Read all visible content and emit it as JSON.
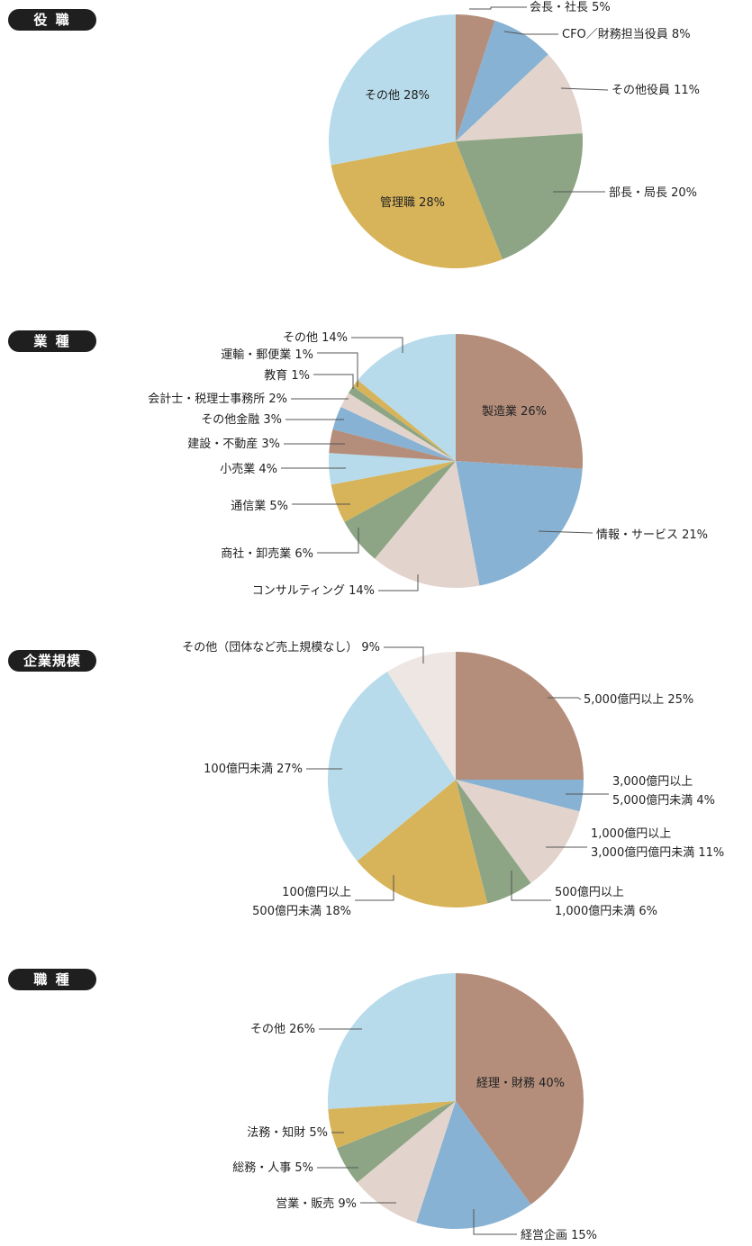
{
  "chart_data": [
    {
      "type": "pie",
      "section_title": "役 職",
      "slices": [
        {
          "label": "会長・社長 5%",
          "value": 5,
          "color": "#b48e7b"
        },
        {
          "label": "CFO／財務担当役員 8%",
          "value": 8,
          "color": "#87b2d3"
        },
        {
          "label": "その他役員 11%",
          "value": 11,
          "color": "#e2d4cc"
        },
        {
          "label": "部長・局長 20%",
          "value": 20,
          "color": "#8da584"
        },
        {
          "label": "管理職 28%",
          "value": 28,
          "color": "#d7b45a"
        },
        {
          "label": "その他 28%",
          "value": 28,
          "color": "#b8dbeb"
        }
      ]
    },
    {
      "type": "pie",
      "section_title": "業 種",
      "slices": [
        {
          "label": "製造業 26%",
          "value": 26,
          "color": "#b48e7b"
        },
        {
          "label": "情報・サービス 21%",
          "value": 21,
          "color": "#87b2d3"
        },
        {
          "label": "コンサルティング 14%",
          "value": 14,
          "color": "#e2d4cc"
        },
        {
          "label": "商社・卸売業 6%",
          "value": 6,
          "color": "#8da584"
        },
        {
          "label": "通信業 5%",
          "value": 5,
          "color": "#d7b45a"
        },
        {
          "label": "小売業 4%",
          "value": 4,
          "color": "#b8dbeb"
        },
        {
          "label": "建設・不動産 3%",
          "value": 3,
          "color": "#b48e7b"
        },
        {
          "label": "その他金融 3%",
          "value": 3,
          "color": "#87b2d3"
        },
        {
          "label": "会計士・税理士事務所 2%",
          "value": 2,
          "color": "#e2d4cc"
        },
        {
          "label": "教育 1%",
          "value": 1,
          "color": "#8da584"
        },
        {
          "label": "運輸・郵便業 1%",
          "value": 1,
          "color": "#d7b45a"
        },
        {
          "label": "その他 14%",
          "value": 14,
          "color": "#b8dbeb"
        }
      ]
    },
    {
      "type": "pie",
      "section_title": "企業規模",
      "slices": [
        {
          "label": "5,000億円以上 25%",
          "value": 25,
          "color": "#b48e7b"
        },
        {
          "label": "3,000億円以上\n5,000億円未満 4%",
          "value": 4,
          "color": "#87b2d3"
        },
        {
          "label": "1,000億円以上\n3,000億円億円未満 11%",
          "value": 11,
          "color": "#e2d4cc"
        },
        {
          "label": "500億円以上\n1,000億円未満 6%",
          "value": 6,
          "color": "#8da584"
        },
        {
          "label": "100億円以上\n500億円未満 18%",
          "value": 18,
          "color": "#d7b45a"
        },
        {
          "label": "100億円未満 27%",
          "value": 27,
          "color": "#b8dbeb"
        },
        {
          "label": "その他（団体など売上規模なし） 9%",
          "value": 9,
          "color": "#ede6e2"
        }
      ]
    },
    {
      "type": "pie",
      "section_title": "職 種",
      "slices": [
        {
          "label": "経理・財務 40%",
          "value": 40,
          "color": "#b48e7b"
        },
        {
          "label": "経営企画 15%",
          "value": 15,
          "color": "#87b2d3"
        },
        {
          "label": "営業・販売 9%",
          "value": 9,
          "color": "#e2d4cc"
        },
        {
          "label": "総務・人事 5%",
          "value": 5,
          "color": "#8da584"
        },
        {
          "label": "法務・知財 5%",
          "value": 5,
          "color": "#d7b45a"
        },
        {
          "label": "その他 26%",
          "value": 26,
          "color": "#b8dbeb"
        }
      ]
    }
  ]
}
